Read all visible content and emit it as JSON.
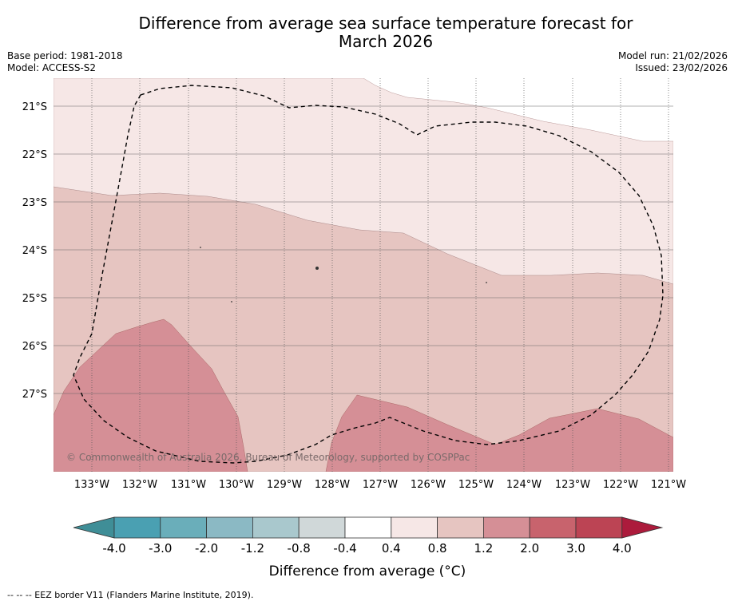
{
  "title_line1": "Difference from average sea surface temperature forecast for",
  "title_line2": "March 2026",
  "base_period": "Base period: 1981-2018",
  "model": "Model: ACCESS-S2",
  "model_run": "Model run: 21/02/2026",
  "issued": "Issued: 23/02/2026",
  "copyright": "© Commonwealth of Australia 2026, Bureau of Meteorology, supported by COSPPac",
  "lat_labels": [
    "21°S",
    "22°S",
    "23°S",
    "24°S",
    "25°S",
    "26°S",
    "27°S"
  ],
  "lon_labels": [
    "133°W",
    "132°W",
    "131°W",
    "130°W",
    "129°W",
    "128°W",
    "127°W",
    "126°W",
    "125°W",
    "124°W",
    "123°W",
    "122°W",
    "121°W"
  ],
  "colorbar": {
    "ticks": [
      "-4.0",
      "-3.0",
      "-2.0",
      "-1.2",
      "-0.8",
      "-0.4",
      "0.4",
      "0.8",
      "1.2",
      "2.0",
      "3.0",
      "4.0"
    ],
    "colors": [
      "#3f8e97",
      "#4aa0b2",
      "#6aaeba",
      "#8bb9c4",
      "#a9c8cd",
      "#d0d8d9",
      "#ffffff",
      "#f6e7e6",
      "#e6c5c1",
      "#d58f96",
      "#c8636d",
      "#bc4454",
      "#ac1b3c"
    ],
    "label": "Difference from average (°C)"
  },
  "legend_note": "--  --  -- EEZ border V11 (Flanders Marine Institute, 2019)."
}
